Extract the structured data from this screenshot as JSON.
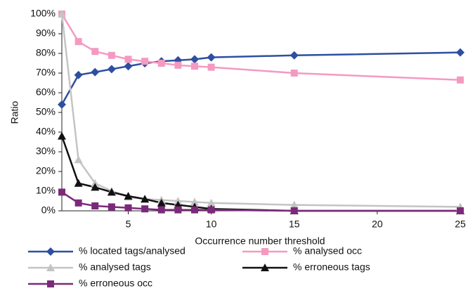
{
  "chart_data": {
    "type": "line",
    "x_label": "Occurrence number threshold",
    "y_label": "Ratio",
    "x": [
      1,
      2,
      3,
      4,
      5,
      6,
      7,
      8,
      9,
      10,
      15,
      25
    ],
    "xlim": [
      1,
      25
    ],
    "xticks": [
      5,
      10,
      15,
      20,
      25
    ],
    "ylim": [
      0,
      100
    ],
    "yticks": [
      {
        "value": 0,
        "label": "0%"
      },
      {
        "value": 10,
        "label": "10%"
      },
      {
        "value": 20,
        "label": "20%"
      },
      {
        "value": 30,
        "label": "30%"
      },
      {
        "value": 40,
        "label": "40%"
      },
      {
        "value": 50,
        "label": "50%"
      },
      {
        "value": 60,
        "label": "60%"
      },
      {
        "value": 70,
        "label": "70%"
      },
      {
        "value": 80,
        "label": "80%"
      },
      {
        "value": 90,
        "label": "90%"
      },
      {
        "value": 100,
        "label": "100%"
      }
    ],
    "grid": false,
    "legend": "bottom",
    "series": [
      {
        "name": "% located tags/analysed",
        "color": "#2e4fa0",
        "marker": "diamond",
        "values": [
          54,
          69,
          70.5,
          72,
          73.5,
          75,
          76,
          76.5,
          77,
          78,
          79,
          80.5
        ]
      },
      {
        "name": "% analysed occ",
        "color": "#f49ac1",
        "marker": "square",
        "values": [
          100,
          86,
          81,
          79,
          77,
          76,
          75,
          74,
          73.5,
          73,
          70,
          66.5
        ]
      },
      {
        "name": "% analysed tags",
        "color": "#c4c4c4",
        "marker": "triangle",
        "values": [
          100,
          26,
          14,
          10,
          7,
          6,
          5.5,
          5,
          4.5,
          4,
          3,
          2
        ]
      },
      {
        "name": "% erroneous tags",
        "color": "#111111",
        "marker": "triangle",
        "values": [
          38,
          14,
          12,
          9.5,
          7.5,
          6,
          4,
          3,
          2,
          1,
          0,
          0
        ]
      },
      {
        "name": "% erroneous occ",
        "color": "#7b2a7a",
        "marker": "square",
        "values": [
          9.5,
          4,
          2.5,
          2,
          1.5,
          1,
          0.5,
          0.5,
          0.5,
          0.5,
          0,
          0
        ]
      }
    ]
  }
}
